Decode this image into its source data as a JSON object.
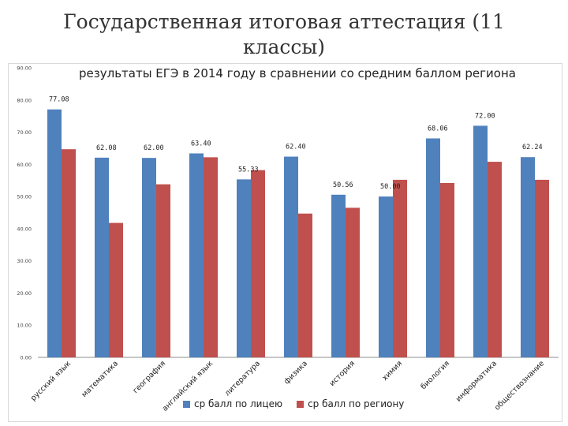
{
  "slide": {
    "title_line1": "Государственная итоговая аттестация (11",
    "title_line2": "классы)"
  },
  "chart_data": {
    "type": "bar",
    "title": "результаты ЕГЭ в 2014 году в сравнении со средним баллом региона",
    "categories": [
      "русский язык",
      "математика",
      "география",
      "английский язык",
      "литература",
      "физика",
      "история",
      "химия",
      "биология",
      "информатика",
      "обществознание"
    ],
    "series": [
      {
        "name": "ср балл по лицею",
        "color": "#4f81bd",
        "values": [
          77.08,
          62.08,
          62.0,
          63.4,
          55.33,
          62.4,
          50.56,
          50.0,
          68.06,
          72.0,
          62.24
        ]
      },
      {
        "name": "ср балл по региону",
        "color": "#c0504d",
        "values": [
          64.7,
          41.8,
          53.8,
          62.2,
          58.2,
          44.7,
          46.5,
          55.2,
          54.2,
          60.8,
          55.2
        ]
      }
    ],
    "data_labels": [
      "77.08",
      "62.08",
      "62.00",
      "63.40",
      "55.33",
      "62.40",
      "50.56",
      "50.00",
      "68.06",
      "72.00",
      "62.24"
    ],
    "y_ticks": [
      "0.00",
      "10.00",
      "20.00",
      "30.00",
      "40.00",
      "50.00",
      "60.00",
      "70.00",
      "80.00",
      "90.00"
    ],
    "ylim": [
      0,
      90
    ],
    "legend_position": "bottom",
    "grid": false
  }
}
